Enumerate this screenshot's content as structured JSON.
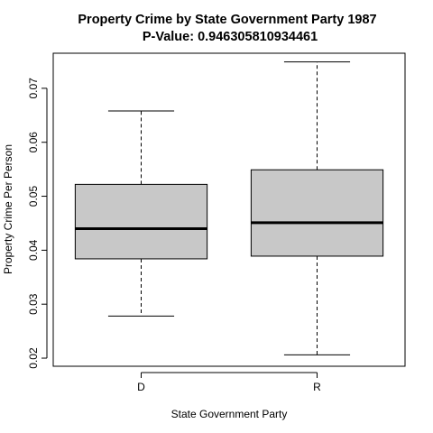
{
  "chart_data": {
    "type": "boxplot",
    "title_line1": "Property Crime  by State Government Party  1987",
    "title_line2": "P-Value:  0.946305810934461",
    "xlabel": "State Government Party",
    "ylabel": "Property Crime  Per Person",
    "ylim": [
      0.0185,
      0.0765
    ],
    "yticks": [
      0.02,
      0.03,
      0.04,
      0.05,
      0.06,
      0.07
    ],
    "ytick_labels": [
      "0.02",
      "0.03",
      "0.04",
      "0.05",
      "0.06",
      "0.07"
    ],
    "categories": [
      "D",
      "R"
    ],
    "boxes": [
      {
        "category": "D",
        "whisker_low": 0.0278,
        "q1": 0.0384,
        "median": 0.044,
        "q3": 0.0522,
        "whisker_high": 0.0658
      },
      {
        "category": "R",
        "whisker_low": 0.0206,
        "q1": 0.0389,
        "median": 0.0451,
        "q3": 0.0549,
        "whisker_high": 0.0749
      }
    ],
    "grid": false,
    "box_fill": "#c8c8c8"
  }
}
